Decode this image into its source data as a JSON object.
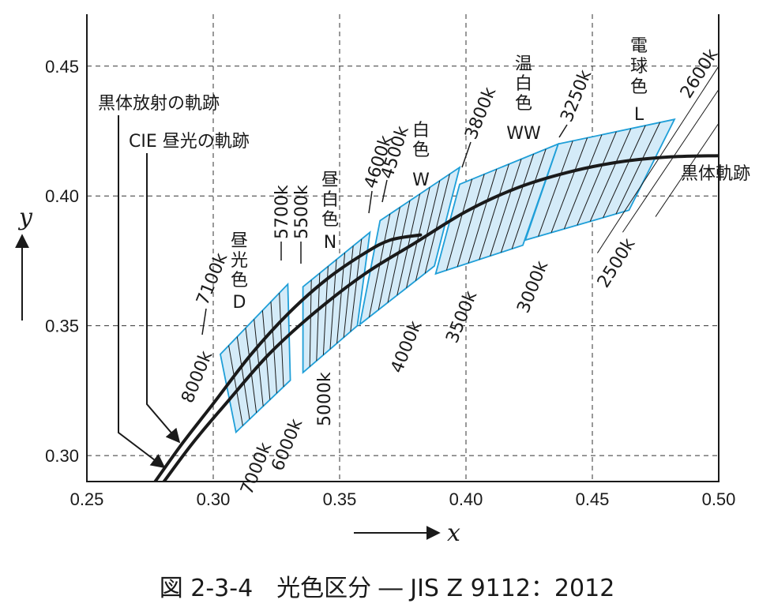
{
  "caption": "図 2-3-4　光色区分 ― JIS Z 9112：2012",
  "chart_data": {
    "type": "line",
    "xlabel": "x",
    "ylabel": "y",
    "xlim": [
      0.25,
      0.5
    ],
    "ylim": [
      0.29,
      0.47
    ],
    "x_ticks": [
      "0.25",
      "0.30",
      "0.35",
      "0.40",
      "0.45",
      "0.50"
    ],
    "y_ticks": [
      "0.30",
      "0.35",
      "0.40",
      "0.45"
    ],
    "grid": "dashed",
    "series": [
      {
        "name": "黒体放射の軌跡",
        "end_label": "黒体軌跡",
        "x": [
          0.2805,
          0.292,
          0.305,
          0.322,
          0.34,
          0.36,
          0.38,
          0.4,
          0.42,
          0.44,
          0.46,
          0.48,
          0.5
        ],
        "y": [
          0.29,
          0.305,
          0.32,
          0.339,
          0.355,
          0.37,
          0.382,
          0.394,
          0.403,
          0.409,
          0.413,
          0.415,
          0.4155
        ]
      },
      {
        "name": "CIE 昼光の軌跡",
        "x": [
          0.277,
          0.288,
          0.3,
          0.315,
          0.33,
          0.345,
          0.36,
          0.37,
          0.382
        ],
        "y": [
          0.29,
          0.305,
          0.32,
          0.339,
          0.355,
          0.368,
          0.378,
          0.383,
          0.385
        ]
      }
    ],
    "regions": [
      {
        "name": "昼光色",
        "code": "D",
        "label_lines": [
          "昼",
          "光",
          "色",
          "D"
        ],
        "polygon": [
          [
            0.3028,
            0.339
          ],
          [
            0.3295,
            0.366
          ],
          [
            0.3305,
            0.329
          ],
          [
            0.309,
            0.309
          ]
        ]
      },
      {
        "name": "昼白色",
        "code": "N",
        "label_lines": [
          "昼",
          "白",
          "色",
          "N"
        ],
        "polygon": [
          [
            0.3355,
            0.365
          ],
          [
            0.362,
            0.386
          ],
          [
            0.357,
            0.35
          ],
          [
            0.3355,
            0.332
          ]
        ]
      },
      {
        "name": "白色",
        "code": "W",
        "label_lines": [
          "白",
          "色",
          "W"
        ],
        "polygon": [
          [
            0.366,
            0.3905
          ],
          [
            0.3975,
            0.411
          ],
          [
            0.3875,
            0.373
          ],
          [
            0.358,
            0.3505
          ]
        ]
      },
      {
        "name": "温白色",
        "code": "WW",
        "label_lines": [
          "温",
          "白",
          "色",
          "WW"
        ],
        "polygon": [
          [
            0.3975,
            0.4045
          ],
          [
            0.4365,
            0.42
          ],
          [
            0.4225,
            0.381
          ],
          [
            0.388,
            0.37
          ]
        ]
      },
      {
        "name": "電球色",
        "code": "L",
        "label_lines": [
          "電",
          "球",
          "色",
          "L"
        ],
        "polygon": [
          [
            0.4365,
            0.42
          ],
          [
            0.4825,
            0.4295
          ],
          [
            0.4645,
            0.3945
          ],
          [
            0.4235,
            0.383
          ]
        ]
      }
    ],
    "cct_labels": [
      "8000k",
      "7100k",
      "7000k",
      "6000k",
      "5700k",
      "5500k",
      "5000k",
      "4600k",
      "4500k",
      "4000k",
      "3800k",
      "3500k",
      "3250k",
      "3000k",
      "2600k",
      "2500k"
    ]
  }
}
